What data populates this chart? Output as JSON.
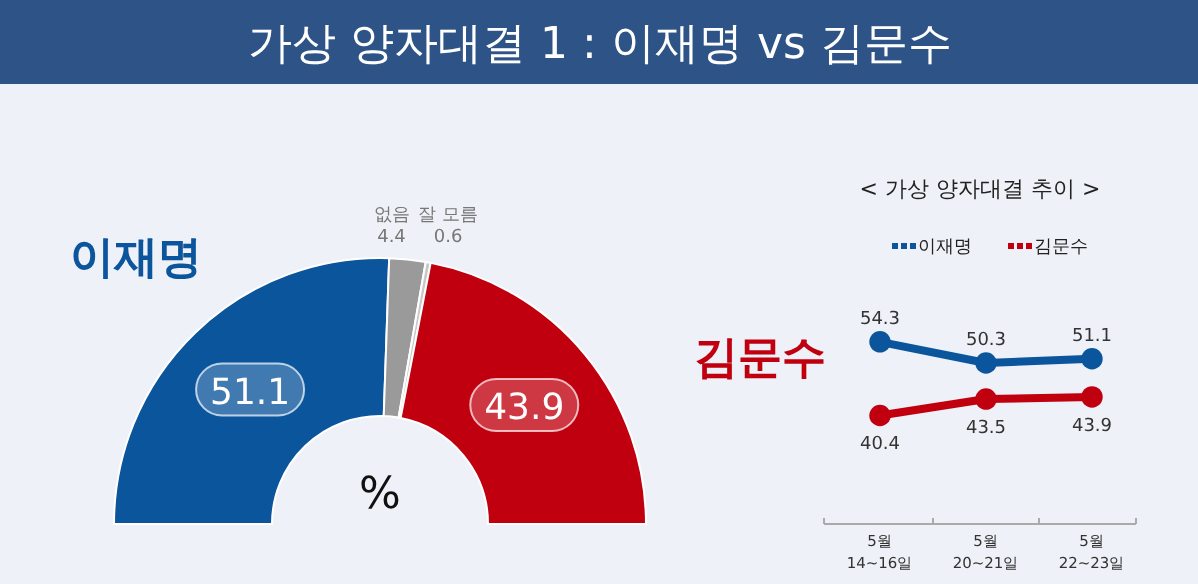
{
  "chart_data": [
    {
      "type": "donut",
      "title": "가상 양자대결 1 : 이재명 vs 김문수",
      "categories": [
        "이재명",
        "없음",
        "잘 모름",
        "김문수"
      ],
      "values": [
        51.1,
        4.4,
        0.6,
        43.9
      ],
      "colors": [
        "#0b559c",
        "#9a9a9a",
        "#c8c8c8",
        "#c0000f"
      ],
      "data_labels": true,
      "annotations": [
        "%"
      ]
    },
    {
      "type": "line",
      "title": "< 가상 양자대결 추이 >",
      "categories": [
        "5월\n14~16일",
        "5월\n20~21일",
        "5월\n22~23일"
      ],
      "series": [
        {
          "name": "이재명",
          "color": "#0b559c",
          "values": [
            54.3,
            50.3,
            51.1
          ]
        },
        {
          "name": "김문수",
          "color": "#c0000f",
          "values": [
            40.4,
            43.5,
            43.9
          ]
        }
      ],
      "data_labels": true,
      "legend": "top",
      "marker": "circle",
      "line_style": "solid"
    }
  ]
}
